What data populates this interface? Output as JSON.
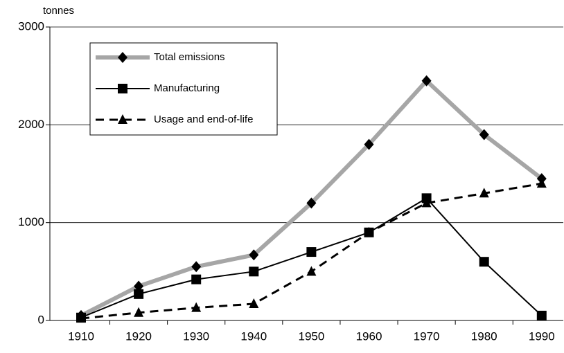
{
  "chart_data": {
    "type": "line",
    "y_label": "tonnes",
    "categories": [
      "1910",
      "1920",
      "1930",
      "1940",
      "1950",
      "1960",
      "1970",
      "1980",
      "1990"
    ],
    "series": [
      {
        "name": "Total emissions",
        "color": "#a6a6a6",
        "marker": "diamond",
        "line_style": "thick",
        "values": [
          50,
          350,
          550,
          670,
          1200,
          1800,
          2450,
          1900,
          1450
        ]
      },
      {
        "name": "Manufacturing",
        "color": "#000000",
        "marker": "square",
        "line_style": "solid",
        "values": [
          30,
          270,
          420,
          500,
          700,
          900,
          1250,
          600,
          50
        ]
      },
      {
        "name": "Usage and end-of-life",
        "color": "#000000",
        "marker": "triangle",
        "line_style": "dashed",
        "values": [
          20,
          80,
          130,
          170,
          500,
          900,
          1200,
          1300,
          1400
        ]
      }
    ],
    "ylim": [
      0,
      3000
    ],
    "yticks": [
      0,
      1000,
      2000,
      3000
    ],
    "grid": true
  }
}
